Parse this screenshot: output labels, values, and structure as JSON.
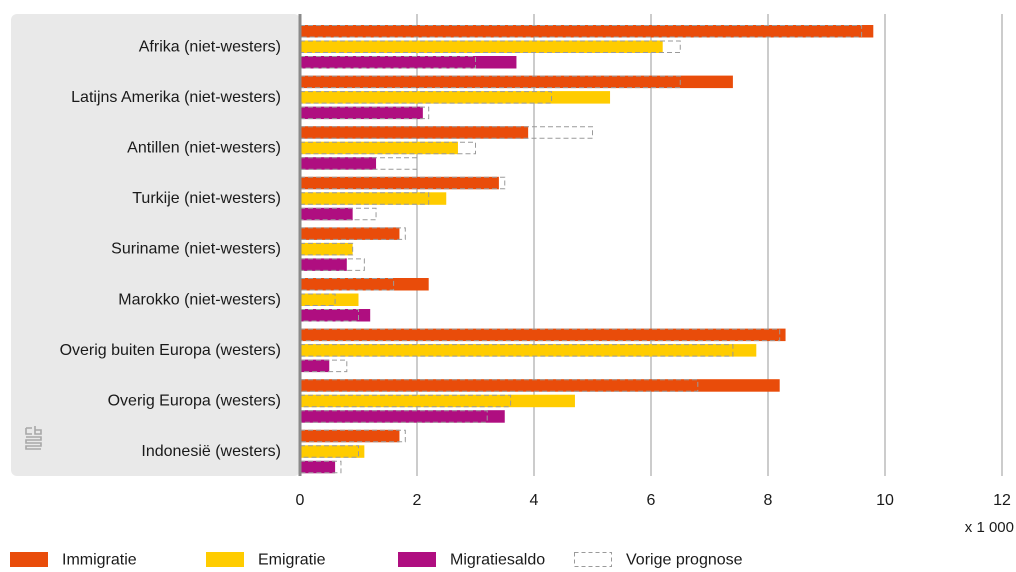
{
  "colors": {
    "immigratie": "#E94C0A",
    "emigratie": "#FFCC00",
    "migratiesaldo": "#AF0E80",
    "vorige_prognose": "#9a9a9a",
    "panel": "#e9e9e9",
    "grid": "#9a9a9a"
  },
  "logo_icon": "cbs-logo-icon",
  "chart_data": {
    "type": "bar",
    "orientation": "horizontal",
    "categories": [
      "Afrika (niet-westers)",
      "Latijns Amerika (niet-westers)",
      "Antillen (niet-westers)",
      "Turkije (niet-westers)",
      "Suriname (niet-westers)",
      "Marokko (niet-westers)",
      "Overig buiten Europa (westers)",
      "Overig Europa (westers)",
      "Indonesië (westers)"
    ],
    "series": [
      {
        "name": "Immigratie",
        "color": "#E94C0A",
        "values": [
          9.8,
          7.4,
          3.9,
          3.4,
          1.7,
          2.2,
          8.3,
          8.2,
          1.7
        ]
      },
      {
        "name": "Emigratie",
        "color": "#FFCC00",
        "values": [
          6.2,
          5.3,
          2.7,
          2.5,
          0.9,
          1.0,
          7.8,
          4.7,
          1.1
        ]
      },
      {
        "name": "Migratiesaldo",
        "color": "#AF0E80",
        "values": [
          3.7,
          2.1,
          1.3,
          0.9,
          0.8,
          1.2,
          0.5,
          3.5,
          0.6
        ]
      }
    ],
    "previous_forecast": {
      "name": "Vorige prognose",
      "immigratie": [
        9.6,
        6.5,
        5.0,
        3.5,
        1.8,
        1.6,
        8.2,
        6.8,
        1.8
      ],
      "emigratie": [
        6.5,
        4.3,
        3.0,
        2.2,
        0.9,
        0.6,
        7.4,
        3.6,
        1.0
      ],
      "migratiesaldo": [
        3.0,
        2.2,
        2.0,
        1.3,
        1.1,
        1.0,
        0.8,
        3.2,
        0.7
      ]
    },
    "xlim": [
      0,
      12
    ],
    "xticks": [
      "0",
      "2",
      "4",
      "6",
      "8",
      "10",
      "12"
    ],
    "x_unit": "x 1 000",
    "grid": true,
    "legend": {
      "position": "bottom-left",
      "items": [
        "Immigratie",
        "Emigratie",
        "Migratiesaldo",
        "Vorige prognose"
      ]
    }
  }
}
